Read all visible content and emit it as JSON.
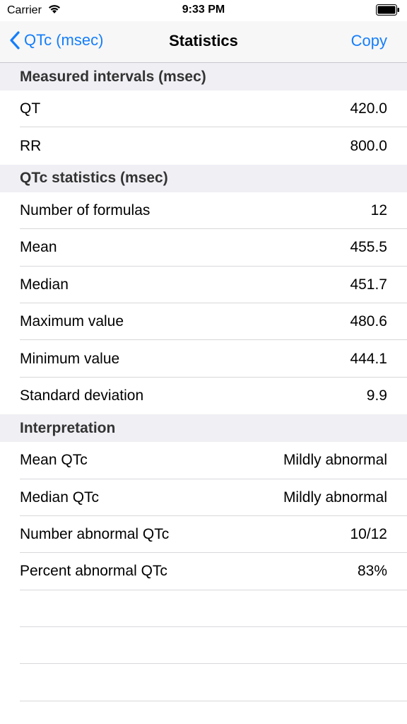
{
  "status_bar": {
    "carrier": "Carrier",
    "time": "9:33 PM",
    "wifi_icon": "wifi-icon",
    "battery_icon": "battery-icon"
  },
  "nav": {
    "back_label": "QTc (msec)",
    "title": "Statistics",
    "copy_label": "Copy",
    "back_icon": "chevron-left-icon",
    "accent_color": "#157efb"
  },
  "sections": {
    "measured": {
      "header": "Measured intervals (msec)",
      "rows": [
        {
          "label": "QT",
          "value": "420.0"
        },
        {
          "label": "RR",
          "value": "800.0"
        }
      ]
    },
    "qtc_stats": {
      "header": "QTc statistics (msec)",
      "rows": [
        {
          "label": "Number of formulas",
          "value": "12"
        },
        {
          "label": "Mean",
          "value": "455.5"
        },
        {
          "label": "Median",
          "value": "451.7"
        },
        {
          "label": "Maximum value",
          "value": "480.6"
        },
        {
          "label": "Minimum value",
          "value": "444.1"
        },
        {
          "label": "Standard deviation",
          "value": "9.9"
        }
      ]
    },
    "interpretation": {
      "header": "Interpretation",
      "rows": [
        {
          "label": "Mean QTc",
          "value": "Mildly abnormal"
        },
        {
          "label": "Median QTc",
          "value": "Mildly abnormal"
        },
        {
          "label": "Number abnormal QTc",
          "value": "10/12"
        },
        {
          "label": "Percent abnormal QTc",
          "value": "83%"
        }
      ]
    }
  }
}
